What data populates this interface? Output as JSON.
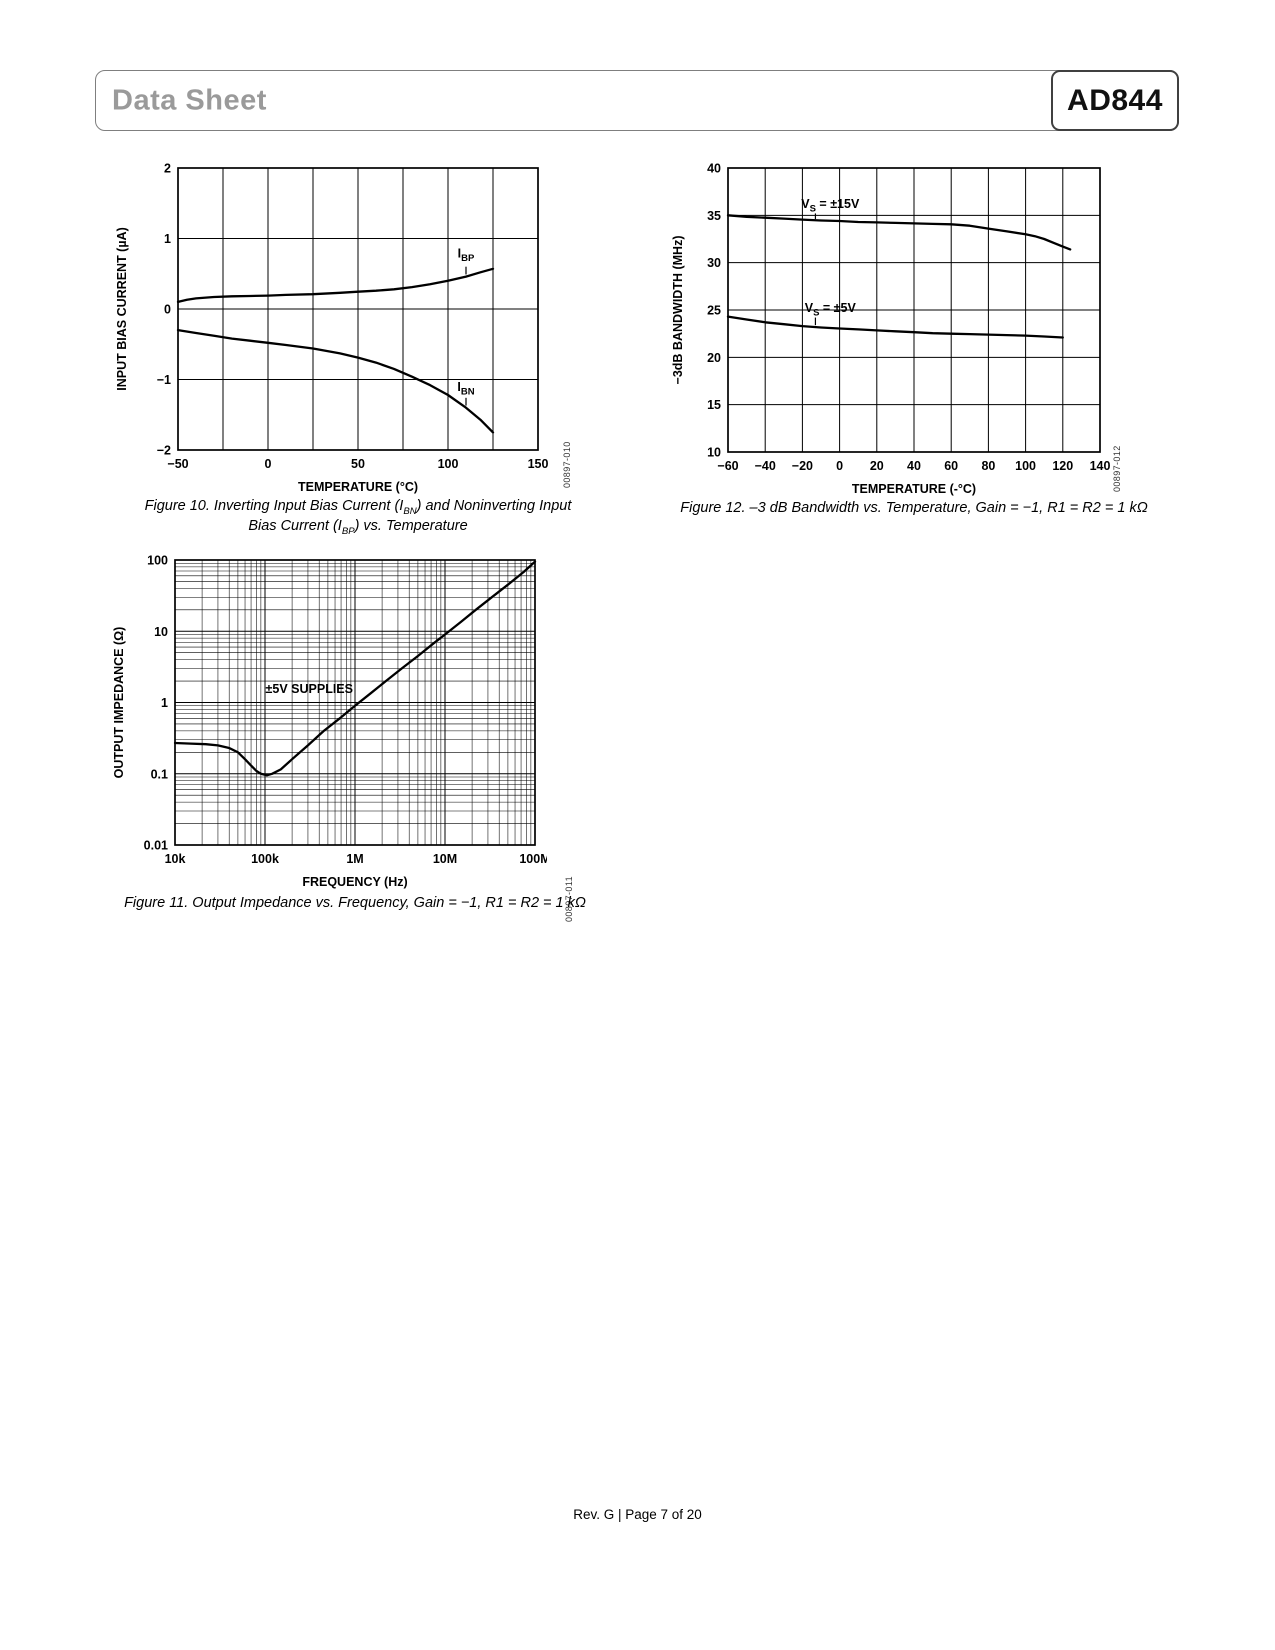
{
  "header": {
    "doc_type": "Data Sheet",
    "part_number": "AD844"
  },
  "page": {
    "footer": "Rev. G | Page 7 of 20"
  },
  "figures": [
    {
      "code": "00897-010",
      "caption": [
        {
          "t": "Figure 10. Inverting Input Bias Current (I"
        },
        {
          "t": "BN",
          "sub": true
        },
        {
          "t": ") and Noninverting Input Bias Current (I"
        },
        {
          "t": "BP",
          "sub": true
        },
        {
          "t": ") vs. Temperature"
        }
      ]
    },
    {
      "code": "00897-011",
      "caption": [
        {
          "t": "Figure 11. Output Impedance vs. Frequency, Gain = −1, R1 = R2 = 1 kΩ"
        }
      ]
    },
    {
      "code": "00897-012",
      "caption": [
        {
          "t": "Figure 12. –3 dB Bandwidth vs. Temperature, Gain = −1, R1 = R2 = 1 kΩ"
        }
      ]
    }
  ],
  "chart_data": [
    {
      "id": "figure-10",
      "type": "line",
      "xlabel": "TEMPERATURE (°C)",
      "ylabel": "INPUT BIAS CURRENT (µA)",
      "xscale": "linear",
      "yscale": "linear",
      "xlim": [
        -50,
        150
      ],
      "ylim": [
        -2,
        2
      ],
      "xgrid_step": 25,
      "ygrid_step": 1,
      "xticks": [
        {
          "v": -50,
          "label": "−50"
        },
        {
          "v": 0,
          "label": "0"
        },
        {
          "v": 50,
          "label": "50"
        },
        {
          "v": 100,
          "label": "100"
        },
        {
          "v": 150,
          "label": "150"
        }
      ],
      "yticks": [
        {
          "v": 2,
          "label": "2"
        },
        {
          "v": 1,
          "label": "1"
        },
        {
          "v": 0,
          "label": "0"
        },
        {
          "v": -1,
          "label": "−1"
        },
        {
          "v": -2,
          "label": "−2"
        }
      ],
      "series": [
        {
          "name": "IBP",
          "points": [
            [
              -50,
              0.1
            ],
            [
              -45,
              0.13
            ],
            [
              -40,
              0.15
            ],
            [
              -30,
              0.17
            ],
            [
              -20,
              0.18
            ],
            [
              -10,
              0.185
            ],
            [
              0,
              0.19
            ],
            [
              10,
              0.2
            ],
            [
              25,
              0.21
            ],
            [
              40,
              0.23
            ],
            [
              50,
              0.245
            ],
            [
              60,
              0.26
            ],
            [
              70,
              0.28
            ],
            [
              80,
              0.31
            ],
            [
              90,
              0.35
            ],
            [
              100,
              0.4
            ],
            [
              110,
              0.46
            ],
            [
              118,
              0.52
            ],
            [
              125,
              0.57
            ]
          ]
        },
        {
          "name": "IBN",
          "points": [
            [
              -50,
              -0.3
            ],
            [
              -40,
              -0.34
            ],
            [
              -30,
              -0.38
            ],
            [
              -20,
              -0.42
            ],
            [
              -10,
              -0.45
            ],
            [
              0,
              -0.48
            ],
            [
              10,
              -0.51
            ],
            [
              25,
              -0.56
            ],
            [
              40,
              -0.63
            ],
            [
              50,
              -0.69
            ],
            [
              60,
              -0.76
            ],
            [
              70,
              -0.85
            ],
            [
              80,
              -0.96
            ],
            [
              90,
              -1.08
            ],
            [
              100,
              -1.22
            ],
            [
              110,
              -1.4
            ],
            [
              118,
              -1.57
            ],
            [
              125,
              -1.75
            ]
          ]
        }
      ],
      "annotations": [
        {
          "parts": [
            {
              "t": "I"
            },
            {
              "t": "BP",
              "sub": true
            }
          ],
          "x": 110,
          "y": 0.73,
          "leader": [
            110,
            0.6,
            110,
            0.49
          ]
        },
        {
          "parts": [
            {
              "t": "I"
            },
            {
              "t": "BN",
              "sub": true
            }
          ],
          "x": 110,
          "y": -1.16,
          "leader": [
            110,
            -1.26,
            110,
            -1.37
          ]
        }
      ]
    },
    {
      "id": "figure-11",
      "type": "line",
      "xlabel": "FREQUENCY (Hz)",
      "ylabel": "OUTPUT IMPEDANCE (Ω)",
      "xscale": "log",
      "yscale": "log",
      "xlim": [
        10000,
        100000000
      ],
      "ylim": [
        0.01,
        100
      ],
      "xticks": [
        {
          "v": 10000,
          "label": "10k"
        },
        {
          "v": 100000,
          "label": "100k"
        },
        {
          "v": 1000000,
          "label": "1M"
        },
        {
          "v": 10000000,
          "label": "10M"
        },
        {
          "v": 100000000,
          "label": "100M"
        }
      ],
      "yticks": [
        {
          "v": 100,
          "label": "100"
        },
        {
          "v": 10,
          "label": "10"
        },
        {
          "v": 1,
          "label": "1"
        },
        {
          "v": 0.1,
          "label": "0.1"
        },
        {
          "v": 0.01,
          "label": "0.01"
        }
      ],
      "series": [
        {
          "name": "output-impedance",
          "points": [
            [
              10000,
              0.27
            ],
            [
              15000,
              0.265
            ],
            [
              22000,
              0.26
            ],
            [
              30000,
              0.25
            ],
            [
              40000,
              0.23
            ],
            [
              50000,
              0.2
            ],
            [
              60000,
              0.16
            ],
            [
              70000,
              0.13
            ],
            [
              80000,
              0.11
            ],
            [
              90000,
              0.1
            ],
            [
              105000,
              0.095
            ],
            [
              120000,
              0.1
            ],
            [
              150000,
              0.115
            ],
            [
              200000,
              0.16
            ],
            [
              300000,
              0.25
            ],
            [
              450000,
              0.4
            ],
            [
              700000,
              0.62
            ],
            [
              1000000,
              0.9
            ],
            [
              1500000,
              1.35
            ],
            [
              2200000,
              2.0
            ],
            [
              3300000,
              3.0
            ],
            [
              5000000,
              4.5
            ],
            [
              7500000,
              6.8
            ],
            [
              10000000,
              9.0
            ],
            [
              15000000,
              13.5
            ],
            [
              22000000,
              20
            ],
            [
              33000000,
              30
            ],
            [
              50000000,
              45
            ],
            [
              75000000,
              68
            ],
            [
              100000000,
              95
            ]
          ]
        }
      ],
      "annotations": [
        {
          "parts": [
            {
              "t": "±5V SUPPLIES"
            }
          ],
          "x": 950000,
          "y": 1.35,
          "anchor": "end"
        }
      ]
    },
    {
      "id": "figure-12",
      "type": "line",
      "xlabel": "TEMPERATURE (-°C)",
      "ylabel": "−3dB BANDWIDTH (MHz)",
      "xscale": "linear",
      "yscale": "linear",
      "xlim": [
        -60,
        140
      ],
      "ylim": [
        10,
        40
      ],
      "xgrid_step": 20,
      "ygrid_step": 5,
      "xticks": [
        {
          "v": -60,
          "label": "−60"
        },
        {
          "v": -40,
          "label": "−40"
        },
        {
          "v": -20,
          "label": "−20"
        },
        {
          "v": 0,
          "label": "0"
        },
        {
          "v": 20,
          "label": "20"
        },
        {
          "v": 40,
          "label": "40"
        },
        {
          "v": 60,
          "label": "60"
        },
        {
          "v": 80,
          "label": "80"
        },
        {
          "v": 100,
          "label": "100"
        },
        {
          "v": 120,
          "label": "120"
        },
        {
          "v": 140,
          "label": "140"
        }
      ],
      "yticks": [
        {
          "v": 40,
          "label": "40"
        },
        {
          "v": 35,
          "label": "35"
        },
        {
          "v": 30,
          "label": "30"
        },
        {
          "v": 25,
          "label": "25"
        },
        {
          "v": 20,
          "label": "20"
        },
        {
          "v": 15,
          "label": "15"
        },
        {
          "v": 10,
          "label": "10"
        }
      ],
      "series": [
        {
          "name": "vs-plus-minus-15v",
          "points": [
            [
              -60,
              35.0
            ],
            [
              -50,
              34.85
            ],
            [
              -40,
              34.75
            ],
            [
              -30,
              34.65
            ],
            [
              -20,
              34.55
            ],
            [
              -10,
              34.45
            ],
            [
              0,
              34.4
            ],
            [
              10,
              34.3
            ],
            [
              20,
              34.25
            ],
            [
              30,
              34.2
            ],
            [
              40,
              34.15
            ],
            [
              50,
              34.1
            ],
            [
              60,
              34.05
            ],
            [
              70,
              33.9
            ],
            [
              80,
              33.6
            ],
            [
              90,
              33.3
            ],
            [
              100,
              33.0
            ],
            [
              105,
              32.8
            ],
            [
              110,
              32.5
            ],
            [
              115,
              32.1
            ],
            [
              120,
              31.7
            ],
            [
              124,
              31.4
            ]
          ]
        },
        {
          "name": "vs-plus-minus-5v",
          "points": [
            [
              -60,
              24.3
            ],
            [
              -50,
              24.0
            ],
            [
              -40,
              23.7
            ],
            [
              -30,
              23.5
            ],
            [
              -20,
              23.3
            ],
            [
              -10,
              23.15
            ],
            [
              0,
              23.05
            ],
            [
              10,
              22.95
            ],
            [
              20,
              22.85
            ],
            [
              30,
              22.75
            ],
            [
              40,
              22.65
            ],
            [
              50,
              22.55
            ],
            [
              60,
              22.5
            ],
            [
              70,
              22.45
            ],
            [
              80,
              22.4
            ],
            [
              90,
              22.35
            ],
            [
              100,
              22.3
            ],
            [
              110,
              22.2
            ],
            [
              120,
              22.1
            ]
          ]
        }
      ],
      "annotations": [
        {
          "parts": [
            {
              "t": "V"
            },
            {
              "t": "S",
              "sub": true
            },
            {
              "t": " = ±15V"
            }
          ],
          "x": -5,
          "y": 35.8,
          "leader": [
            -13,
            35.2,
            -13,
            34.6
          ]
        },
        {
          "parts": [
            {
              "t": "V"
            },
            {
              "t": "S",
              "sub": true
            },
            {
              "t": " = ±5V"
            }
          ],
          "x": -5,
          "y": 24.8,
          "leader": [
            -13,
            24.2,
            -13,
            23.4
          ]
        }
      ]
    }
  ]
}
